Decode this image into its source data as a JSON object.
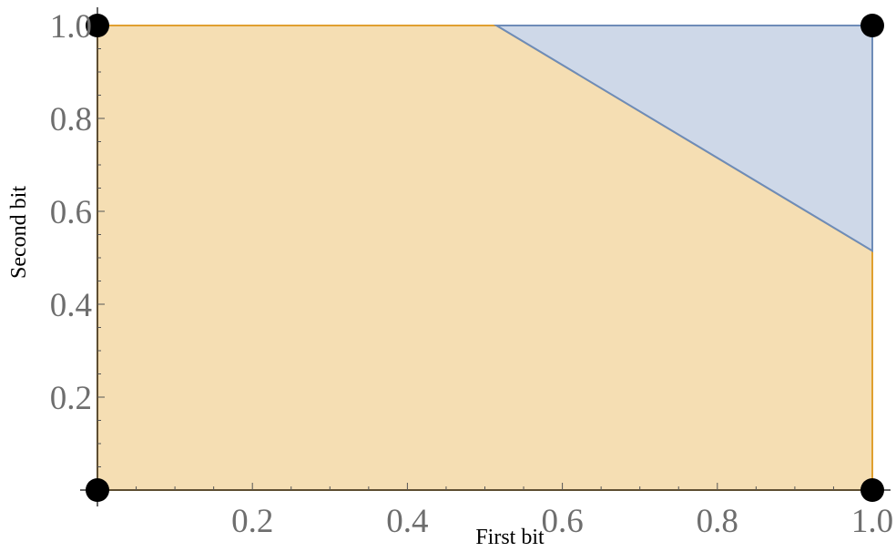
{
  "chart_data": {
    "type": "area",
    "xlabel": "First bit",
    "ylabel": "Second bit",
    "xlim": [
      0,
      1
    ],
    "ylim": [
      0,
      1
    ],
    "x_ticks": [
      "0.2",
      "0.4",
      "0.6",
      "0.8",
      "1.0"
    ],
    "y_ticks": [
      "0.2",
      "0.4",
      "0.6",
      "0.8",
      "1.0"
    ],
    "x_tick_values": [
      0.2,
      0.4,
      0.6,
      0.8,
      1.0
    ],
    "y_tick_values": [
      0.2,
      0.4,
      0.6,
      0.8,
      1.0
    ],
    "regions": [
      {
        "color": "#F5DEB3",
        "edge_color": "#E0A030",
        "polygon": [
          [
            0,
            0
          ],
          [
            0,
            1
          ],
          [
            0.515,
            1
          ],
          [
            1,
            0.515
          ],
          [
            1,
            0
          ]
        ]
      },
      {
        "color": "#CED8E8",
        "edge_color": "#6E8CB8",
        "polygon": [
          [
            0.515,
            1
          ],
          [
            1,
            1
          ],
          [
            1,
            0.515
          ]
        ]
      }
    ],
    "points": [
      [
        0,
        0
      ],
      [
        0,
        1
      ],
      [
        1,
        0
      ],
      [
        1,
        1
      ]
    ],
    "point_color": "#000000",
    "grid": false
  }
}
